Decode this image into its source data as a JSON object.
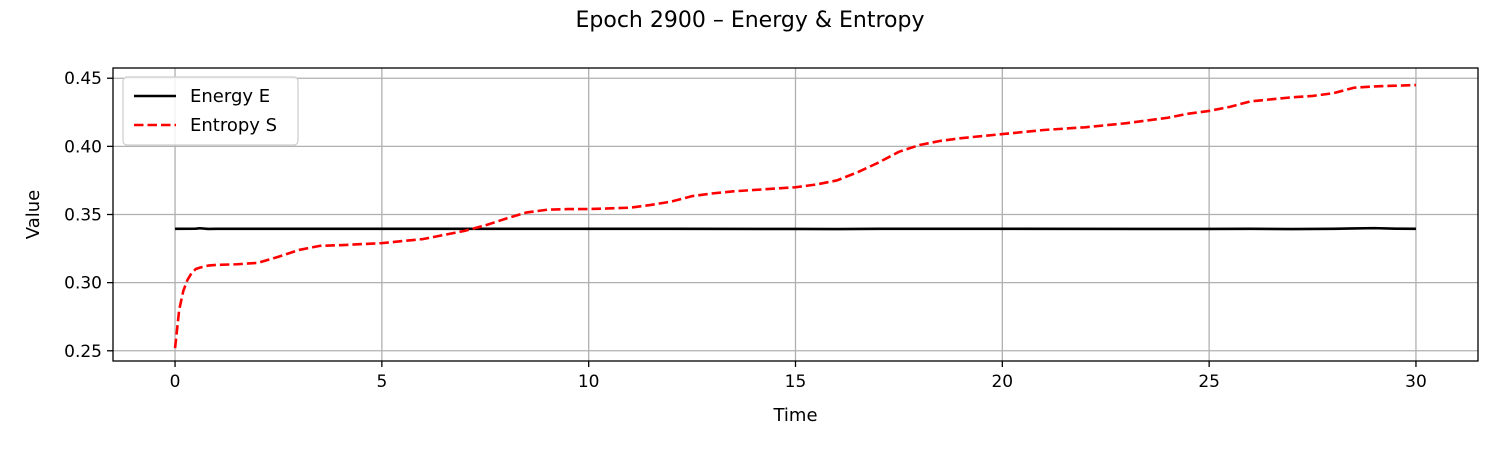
{
  "chart_data": {
    "type": "line",
    "title": "Epoch 2900 – Energy & Entropy",
    "xlabel": "Time",
    "ylabel": "Value",
    "xlim": [
      -1.5,
      31.5
    ],
    "ylim": [
      0.2425,
      0.4575
    ],
    "xticks": [
      0,
      5,
      10,
      15,
      20,
      25,
      30
    ],
    "yticks": [
      0.25,
      0.3,
      0.35,
      0.4,
      0.45
    ],
    "grid": true,
    "legend_position": "upper-left",
    "series": [
      {
        "name": "Energy E",
        "color": "#000000",
        "style": "solid",
        "x": [
          0,
          0.5,
          0.6,
          0.8,
          1,
          2,
          3,
          5,
          7,
          10,
          12,
          15,
          16,
          17,
          20,
          25,
          26,
          27,
          28,
          28.5,
          29,
          29.5,
          30
        ],
        "y": [
          0.3395,
          0.3396,
          0.3399,
          0.3394,
          0.3395,
          0.3395,
          0.3395,
          0.3395,
          0.3395,
          0.3395,
          0.3395,
          0.3394,
          0.3393,
          0.3395,
          0.3395,
          0.3394,
          0.3395,
          0.3393,
          0.3395,
          0.3398,
          0.34,
          0.3396,
          0.3395
        ]
      },
      {
        "name": "Entropy S",
        "color": "#ff0000",
        "style": "dashed",
        "x": [
          0,
          0.1,
          0.2,
          0.3,
          0.4,
          0.5,
          0.6,
          0.8,
          1.0,
          1.5,
          2.0,
          2.5,
          3.0,
          3.5,
          4.0,
          5.0,
          6.0,
          7.0,
          7.5,
          8.0,
          8.5,
          9.0,
          9.5,
          10.0,
          11.0,
          11.5,
          12.0,
          12.5,
          13.0,
          13.5,
          14.0,
          15.0,
          15.5,
          16.0,
          16.5,
          17.0,
          17.5,
          18.0,
          18.5,
          19.0,
          20.0,
          21.0,
          22.0,
          23.0,
          23.5,
          24.0,
          24.5,
          25.0,
          25.5,
          26.0,
          27.0,
          27.5,
          28.0,
          28.5,
          29.0,
          30.0
        ],
        "y": [
          0.252,
          0.28,
          0.294,
          0.302,
          0.307,
          0.31,
          0.311,
          0.3125,
          0.313,
          0.3135,
          0.3145,
          0.319,
          0.324,
          0.327,
          0.3275,
          0.329,
          0.332,
          0.338,
          0.342,
          0.347,
          0.3515,
          0.3535,
          0.354,
          0.354,
          0.355,
          0.357,
          0.3595,
          0.3635,
          0.3655,
          0.367,
          0.368,
          0.37,
          0.372,
          0.375,
          0.381,
          0.388,
          0.396,
          0.401,
          0.404,
          0.406,
          0.409,
          0.412,
          0.414,
          0.417,
          0.419,
          0.421,
          0.424,
          0.426,
          0.429,
          0.433,
          0.436,
          0.437,
          0.439,
          0.443,
          0.444,
          0.445
        ]
      }
    ]
  }
}
